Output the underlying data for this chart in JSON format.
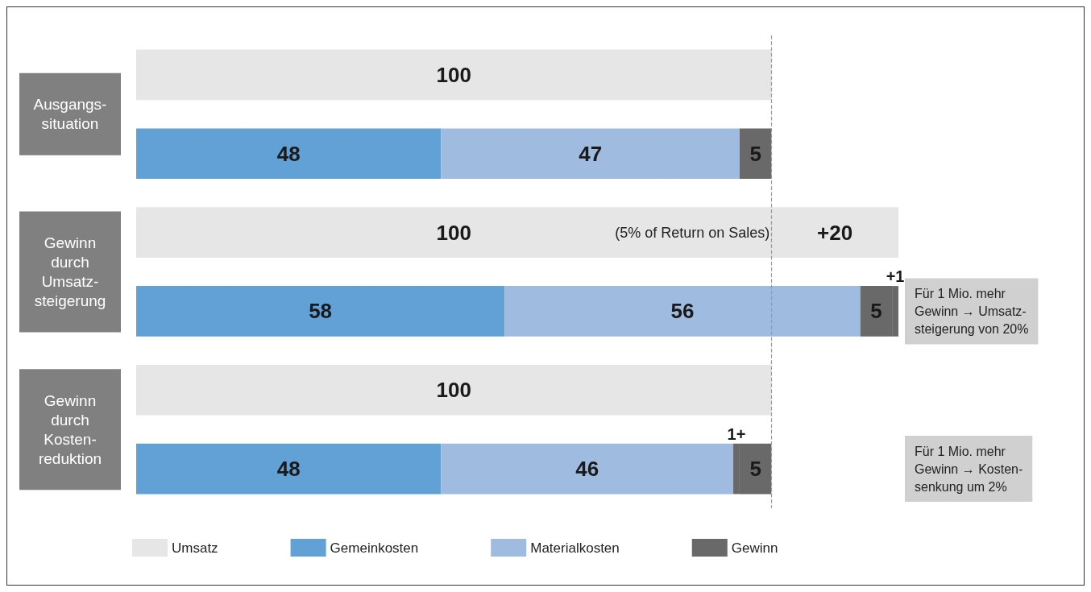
{
  "chart_data": {
    "type": "bar",
    "orientation": "horizontal",
    "stacked": true,
    "data_labels": true,
    "legend": "bottom",
    "tick_labels": "y",
    "categories": [
      "Ausgangs-\nsituation",
      null,
      "Gewinn\ndurch\nUmsatz-\nsteigerung",
      null,
      "Gewinn\ndurch\nKosten-\nreduktion",
      null
    ],
    "series": [
      {
        "name": "Umsatz",
        "color": "#e6e6e6",
        "values": [
          100,
          null,
          100,
          null,
          100,
          null
        ]
      },
      {
        "color": "#e6e6e6",
        "values": [
          null,
          null,
          20,
          null,
          null,
          null
        ],
        "value_labels": [
          null,
          null,
          "+20",
          null,
          null,
          null
        ]
      },
      {
        "name": "Gemeinkosten",
        "color": "#62a1d6",
        "values": [
          null,
          48,
          null,
          58,
          null,
          48
        ]
      },
      {
        "name": "Materialkosten",
        "color": "#9fbbe0",
        "values": [
          null,
          47,
          null,
          56,
          null,
          46
        ]
      },
      {
        "color": "#696969",
        "values": [
          null,
          null,
          null,
          null,
          null,
          1
        ],
        "value_labels": [
          null,
          null,
          null,
          null,
          null,
          "1+"
        ]
      },
      {
        "name": "Gewinn",
        "color": "#696969",
        "values": [
          null,
          5,
          null,
          5,
          null,
          5
        ]
      },
      {
        "color": "#696969",
        "values": [
          null,
          null,
          null,
          1,
          null,
          null
        ],
        "value_labels": [
          null,
          null,
          null,
          "+1",
          null,
          null
        ]
      }
    ],
    "ref_lines": [
      {
        "axis": "x",
        "value": 100,
        "color": "#999999",
        "line_style": "dashed"
      }
    ],
    "annotations": [
      "(5% of Return on Sales)",
      "Für 1 Mio. mehr\nGewinn → Umsatz-\nsteigerung von 20%",
      "Für 1 Mio. mehr\nGewinn → Kosten-\nsenkung um 2%"
    ]
  }
}
